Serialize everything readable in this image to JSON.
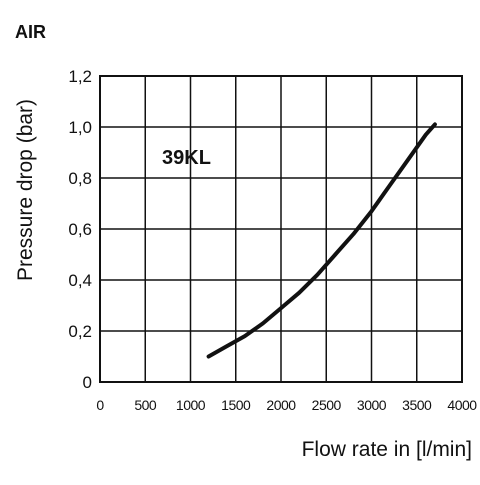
{
  "chart_data": {
    "type": "line",
    "heading": "AIR",
    "annotation": "39KL",
    "xlabel": "Flow rate in [l/min]",
    "ylabel": "Pressure drop (bar)",
    "xlim": [
      0,
      4000
    ],
    "ylim": [
      0,
      1.2
    ],
    "x_ticks": [
      "0",
      "500",
      "1000",
      "1500",
      "2000",
      "2500",
      "3000",
      "3500",
      "4000"
    ],
    "y_ticks": [
      "0",
      "0,2",
      "0,4",
      "0,6",
      "0,8",
      "1,0",
      "1,2"
    ],
    "grid": true,
    "legend": "none",
    "line_color": "#111111",
    "grid_color": "#111111",
    "series": [
      {
        "x": [
          1200,
          1400,
          1600,
          1800,
          2000,
          2200,
          2400,
          2600,
          2800,
          3000,
          3200,
          3400,
          3600,
          3700
        ],
        "y": [
          0.1,
          0.14,
          0.18,
          0.23,
          0.29,
          0.35,
          0.42,
          0.5,
          0.58,
          0.67,
          0.77,
          0.87,
          0.97,
          1.01
        ]
      }
    ]
  }
}
